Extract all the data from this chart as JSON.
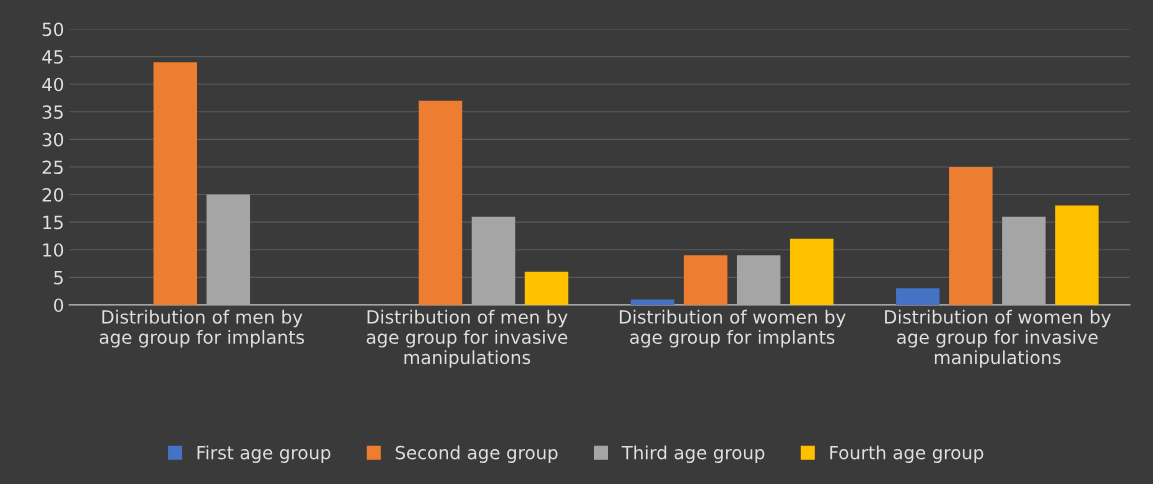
{
  "chart_data": {
    "type": "bar",
    "categories": [
      "Distribution of men by age group for implants",
      "Distribution of men by age group for invasive manipulations",
      "Distribution of women by age group for implants",
      "Distribution of women by age group for invasive manipulations"
    ],
    "series": [
      {
        "name": "First age group",
        "color": "#4472c4",
        "values": [
          0,
          0,
          1,
          3
        ]
      },
      {
        "name": "Second age group",
        "color": "#ed7d31",
        "values": [
          44,
          37,
          9,
          25
        ]
      },
      {
        "name": "Third age group",
        "color": "#a5a5a5",
        "values": [
          20,
          16,
          9,
          16
        ]
      },
      {
        "name": "Fourth age group",
        "color": "#ffc000",
        "values": [
          0,
          6,
          12,
          18
        ]
      }
    ],
    "ylim": [
      0,
      50
    ],
    "yticks": [
      0,
      5,
      10,
      15,
      20,
      25,
      30,
      35,
      40,
      45,
      50
    ],
    "grid": "y",
    "legend": "bottom"
  }
}
